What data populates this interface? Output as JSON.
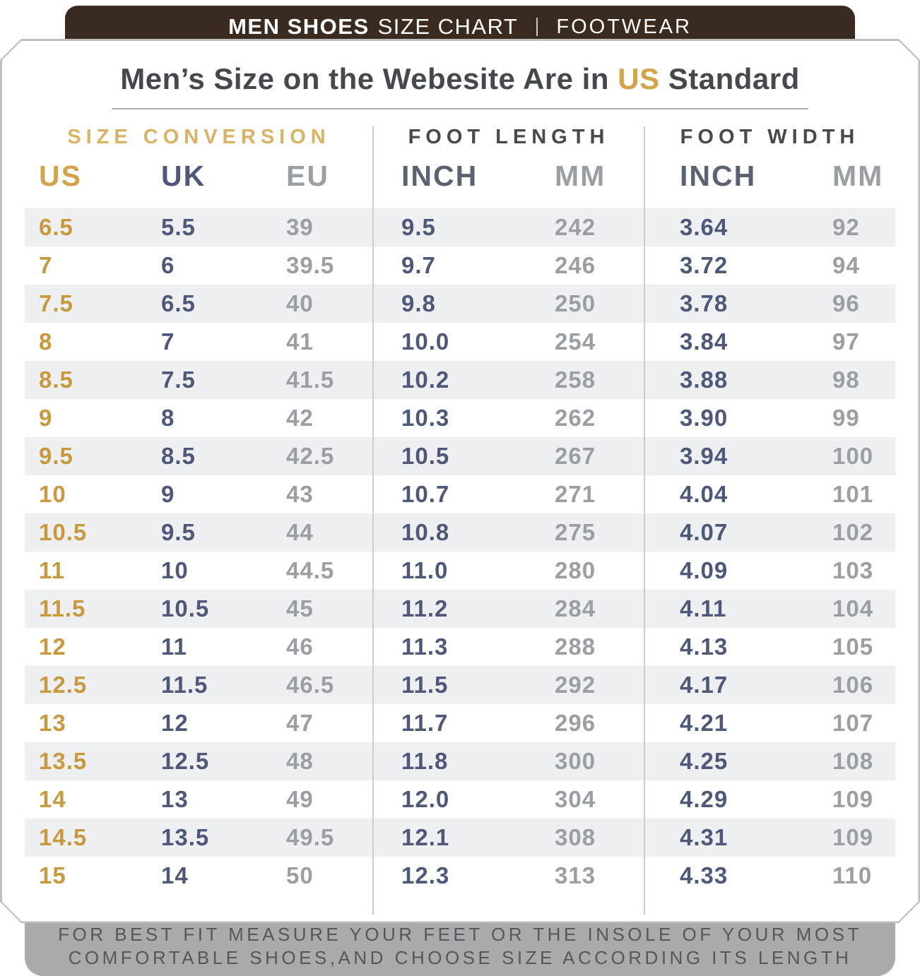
{
  "banner": {
    "title_bold": "MEN SHOES",
    "title_regular": "SIZE CHART",
    "category": "FOOTWEAR"
  },
  "title": {
    "pre": "Men’s Size on the Webesite Are in ",
    "highlight": "US",
    "post": " Standard"
  },
  "chart_data": {
    "type": "table",
    "title": "Men's Size on the Webesite Are in US Standard",
    "groups": [
      {
        "label": "SIZE CONVERSION",
        "columns": [
          "US",
          "UK",
          "EU"
        ]
      },
      {
        "label": "FOOT LENGTH",
        "columns": [
          "INCH",
          "MM"
        ]
      },
      {
        "label": "FOOT WIDTH",
        "columns": [
          "INCH",
          "MM"
        ]
      }
    ],
    "columns": [
      "US",
      "UK",
      "EU",
      "FOOT LENGTH INCH",
      "FOOT LENGTH MM",
      "FOOT WIDTH INCH",
      "FOOT WIDTH MM"
    ],
    "rows": [
      [
        "6.5",
        "5.5",
        "39",
        "9.5",
        "242",
        "3.64",
        "92"
      ],
      [
        "7",
        "6",
        "39.5",
        "9.7",
        "246",
        "3.72",
        "94"
      ],
      [
        "7.5",
        "6.5",
        "40",
        "9.8",
        "250",
        "3.78",
        "96"
      ],
      [
        "8",
        "7",
        "41",
        "10.0",
        "254",
        "3.84",
        "97"
      ],
      [
        "8.5",
        "7.5",
        "41.5",
        "10.2",
        "258",
        "3.88",
        "98"
      ],
      [
        "9",
        "8",
        "42",
        "10.3",
        "262",
        "3.90",
        "99"
      ],
      [
        "9.5",
        "8.5",
        "42.5",
        "10.5",
        "267",
        "3.94",
        "100"
      ],
      [
        "10",
        "9",
        "43",
        "10.7",
        "271",
        "4.04",
        "101"
      ],
      [
        "10.5",
        "9.5",
        "44",
        "10.8",
        "275",
        "4.07",
        "102"
      ],
      [
        "11",
        "10",
        "44.5",
        "11.0",
        "280",
        "4.09",
        "103"
      ],
      [
        "11.5",
        "10.5",
        "45",
        "11.2",
        "284",
        "4.11",
        "104"
      ],
      [
        "12",
        "11",
        "46",
        "11.3",
        "288",
        "4.13",
        "105"
      ],
      [
        "12.5",
        "11.5",
        "46.5",
        "11.5",
        "292",
        "4.17",
        "106"
      ],
      [
        "13",
        "12",
        "47",
        "11.7",
        "296",
        "4.21",
        "107"
      ],
      [
        "13.5",
        "12.5",
        "48",
        "11.8",
        "300",
        "4.25",
        "108"
      ],
      [
        "14",
        "13",
        "49",
        "12.0",
        "304",
        "4.29",
        "109"
      ],
      [
        "14.5",
        "13.5",
        "49.5",
        "12.1",
        "308",
        "4.31",
        "109"
      ],
      [
        "15",
        "14",
        "50",
        "12.3",
        "313",
        "4.33",
        "110"
      ]
    ]
  },
  "footer": {
    "line1": "FOR BEST FIT MEASURE YOUR FEET OR THE INSOLE OF YOUR MOST",
    "line2": "COMFORTABLE SHOES,AND CHOOSE SIZE ACCORDING ITS LENGTH"
  },
  "colors": {
    "banner_brown": "#3a2b20",
    "gold": "#c9993e",
    "gold_light": "#d9b264",
    "navy": "#4e5878",
    "gray": "#9b9fa3",
    "dark_text": "#45494d",
    "stripe": "#edeff1",
    "footer_bg": "#a8aaac",
    "footer_text": "#55575a"
  }
}
